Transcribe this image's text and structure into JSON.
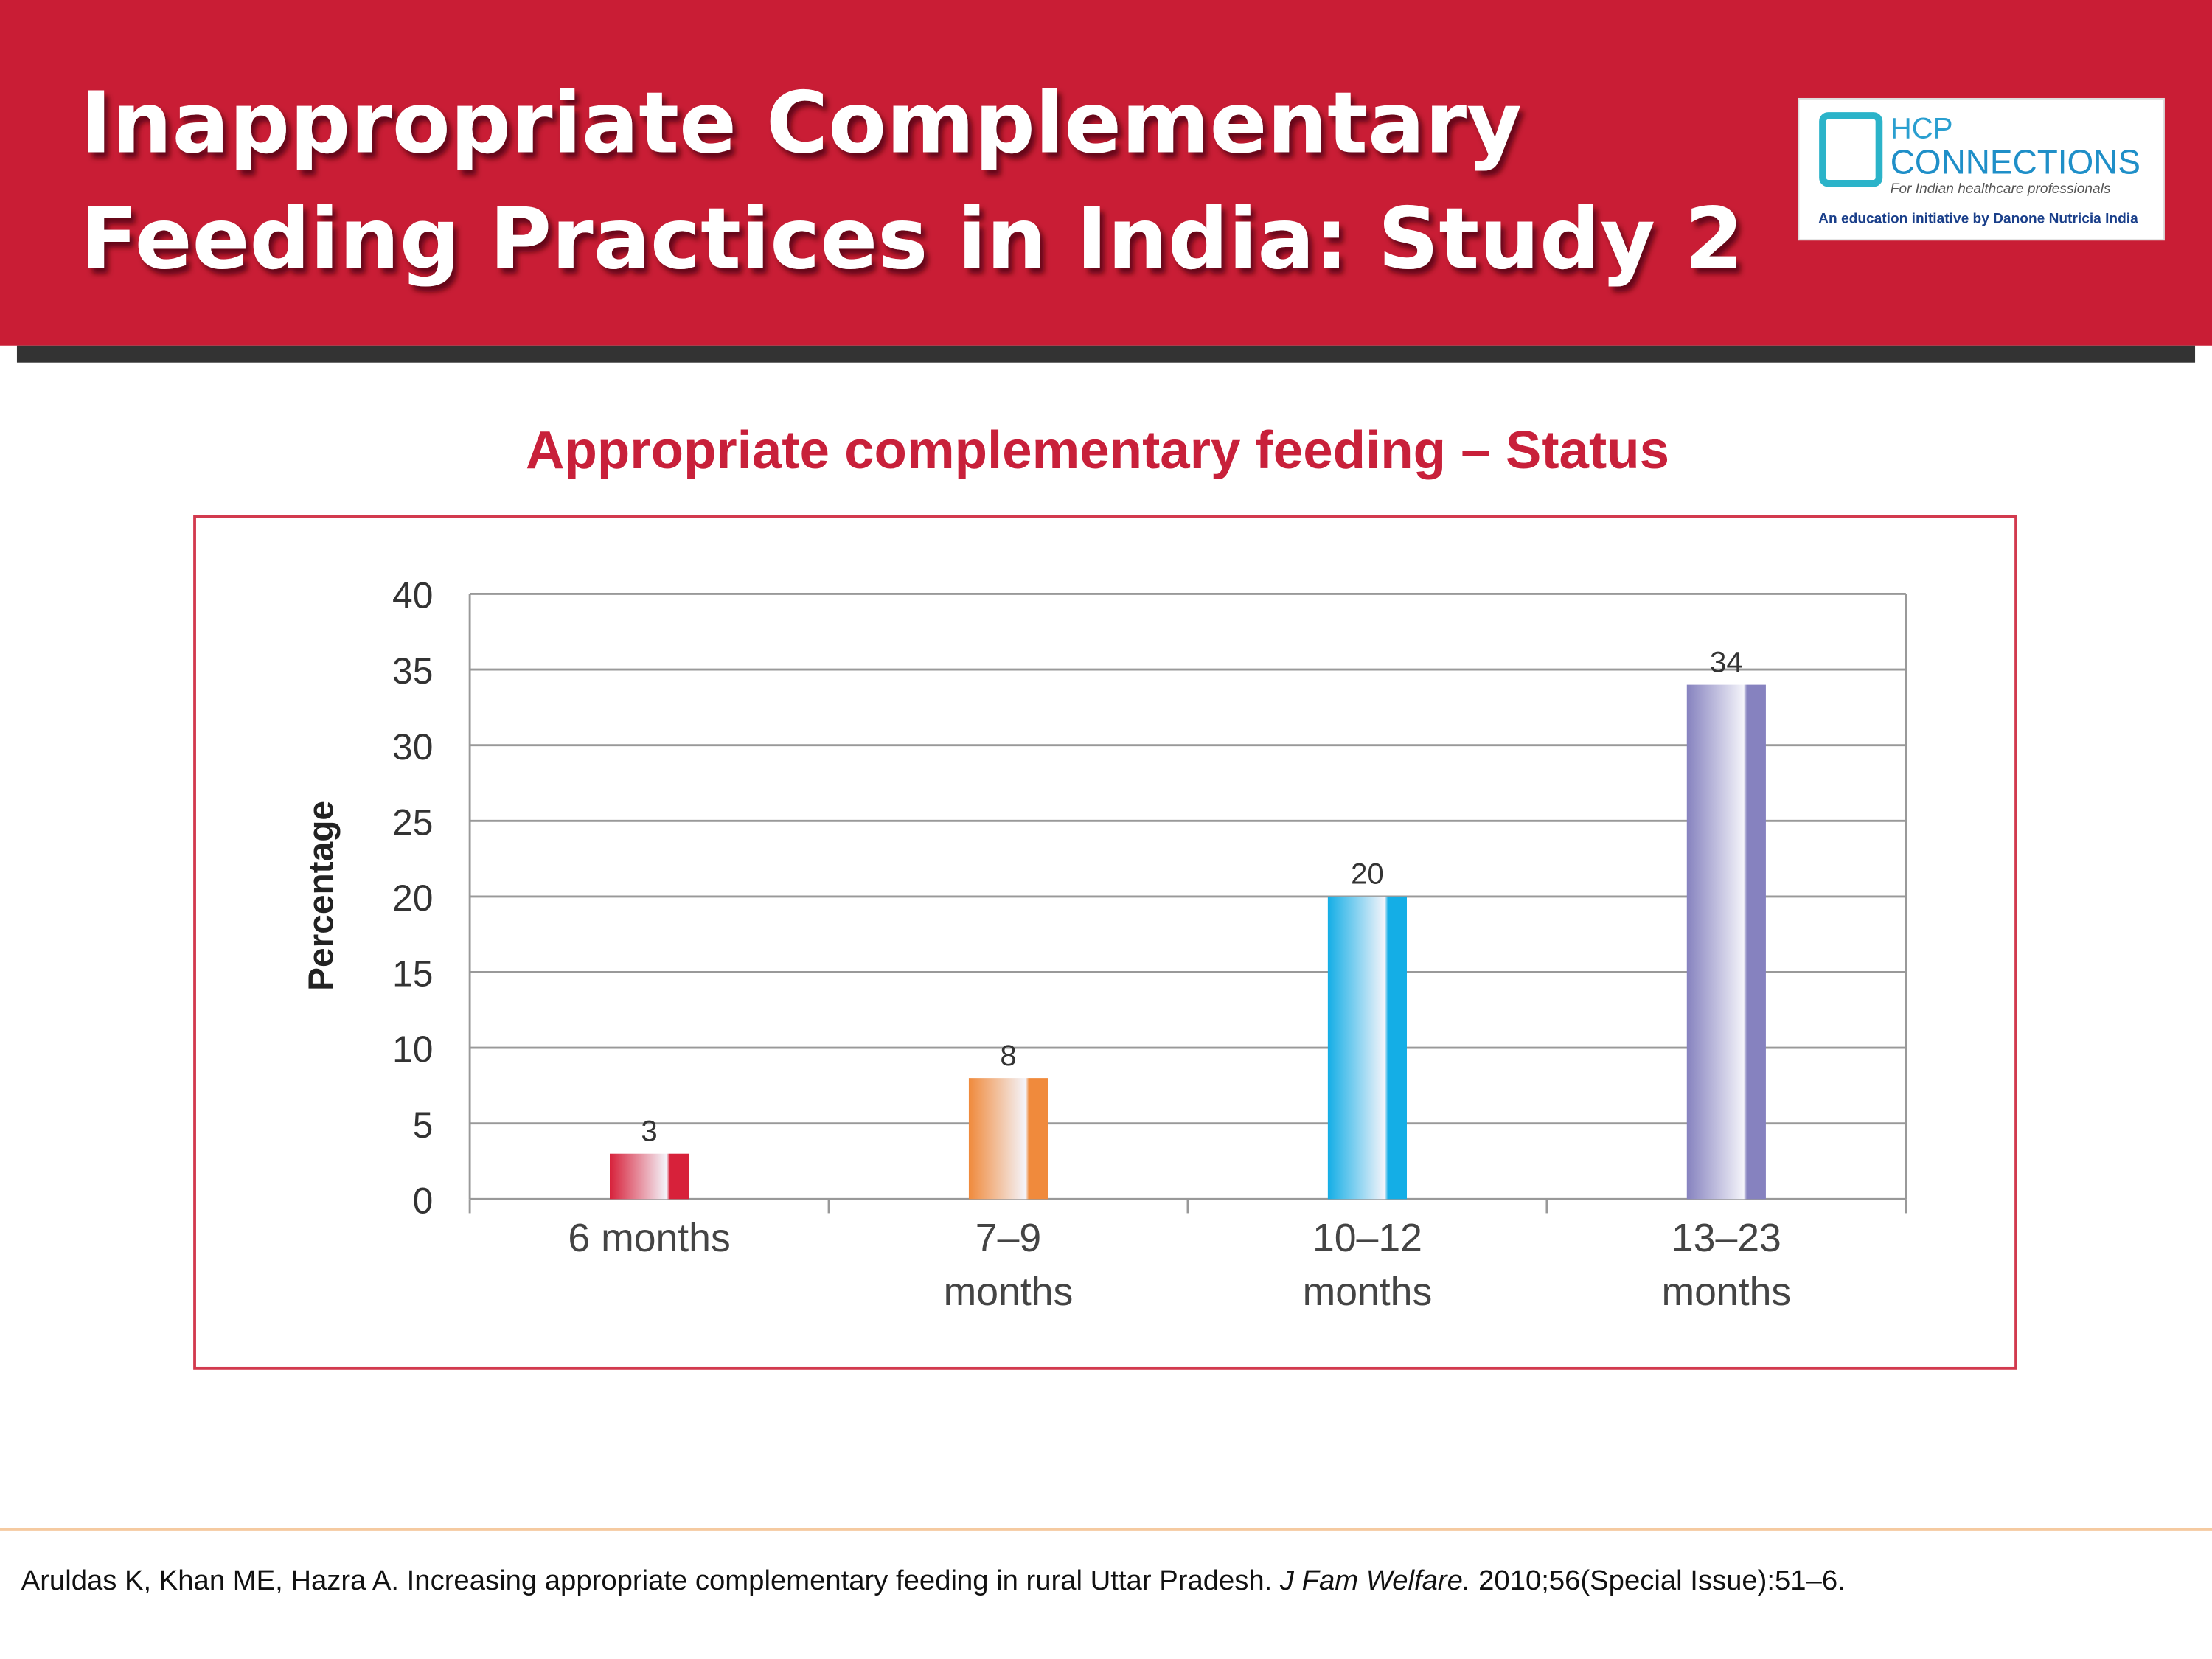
{
  "header": {
    "title_lines": [
      "Inappropriate Complementary",
      "Feeding Practices in India: Study 2"
    ]
  },
  "logo": {
    "brand_top": "HCP",
    "brand_main": "CONNECTIONS",
    "tagline": "For Indian healthcare professionals",
    "initiative": "An education initiative by Danone Nutricia India"
  },
  "chart_data": {
    "type": "bar",
    "title": "Appropriate complementary feeding – Status",
    "y_label": "Percentage",
    "categories": [
      [
        "6 months"
      ],
      [
        "7–9",
        "months"
      ],
      [
        "10–12",
        "months"
      ],
      [
        "13–23",
        "months"
      ]
    ],
    "values": [
      3,
      8,
      20,
      34
    ],
    "colors": [
      "#d7213a",
      "#f08a3c",
      "#14aee6",
      "#8682bf"
    ],
    "ylim": [
      0,
      40
    ],
    "yticks": [
      0,
      5,
      10,
      15,
      20,
      25,
      30,
      35,
      40
    ],
    "grid": true
  },
  "reference": {
    "text": "Aruldas K, Khan ME, Hazra A. Increasing appropriate complementary feeding in rural Uttar Pradesh. ",
    "journal": "J Fam Welfare.",
    "details": " 2010;56(Special Issue):51–6."
  }
}
